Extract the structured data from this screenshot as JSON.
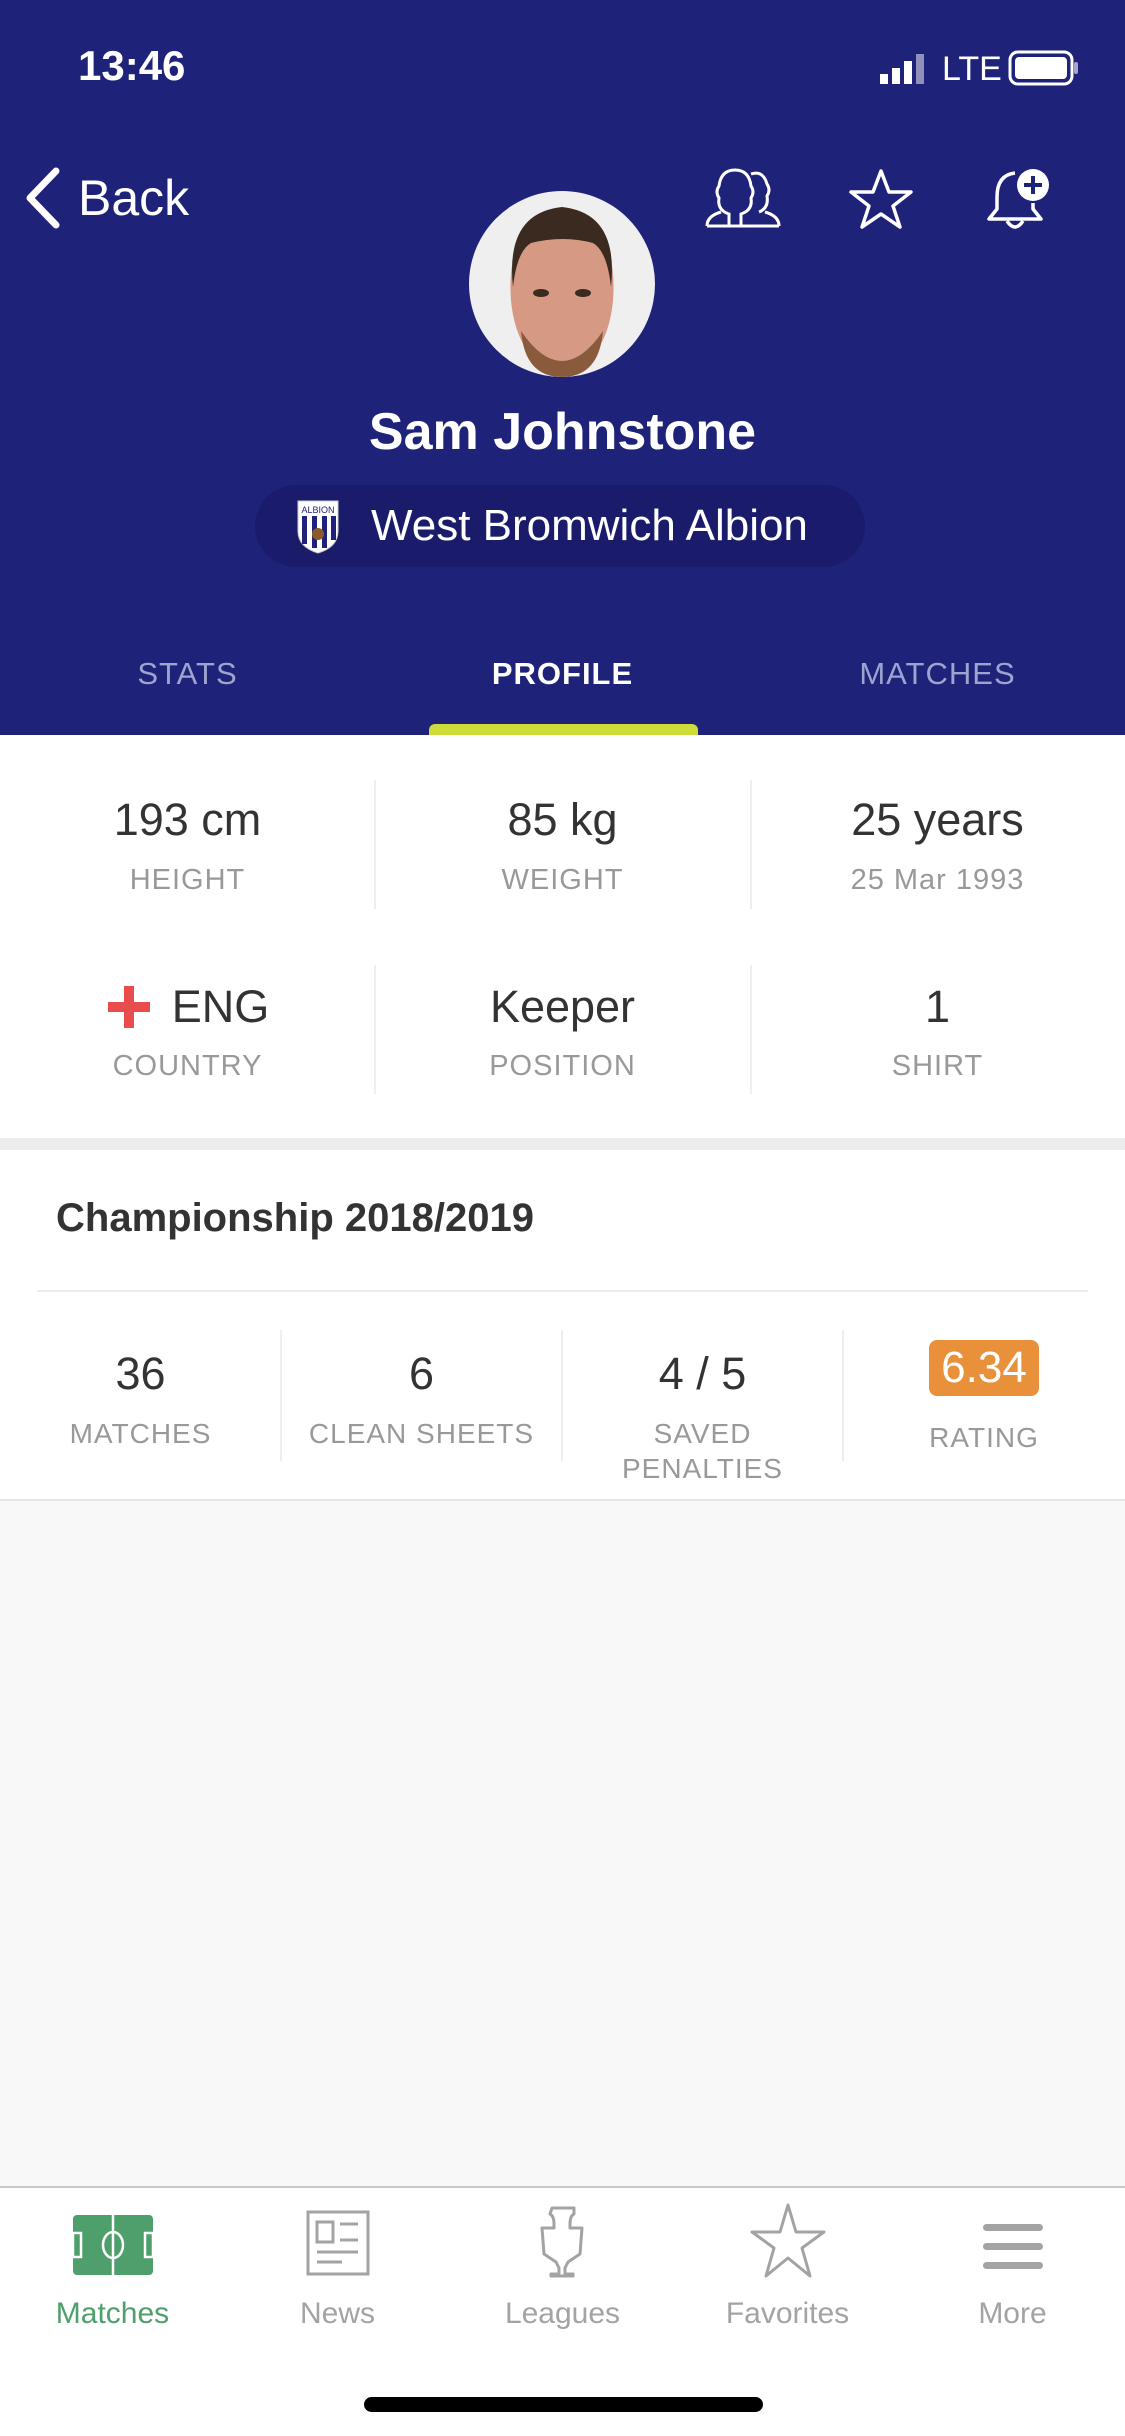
{
  "status_bar": {
    "time": "13:46",
    "network": "LTE"
  },
  "header": {
    "back_label": "Back",
    "player_name": "Sam Johnstone",
    "club_name": "West Bromwich Albion",
    "icons": [
      "compare-players-icon",
      "star-icon",
      "bell-plus-icon"
    ]
  },
  "tabs": [
    {
      "label": "STATS"
    },
    {
      "label": "PROFILE",
      "active": true
    },
    {
      "label": "MATCHES"
    }
  ],
  "profile": {
    "height": {
      "value": "193 cm",
      "label": "HEIGHT"
    },
    "weight": {
      "value": "85 kg",
      "label": "WEIGHT"
    },
    "age": {
      "value": "25 years",
      "label": "25 Mar 1993"
    },
    "country": {
      "value": "ENG",
      "label": "COUNTRY"
    },
    "position": {
      "value": "Keeper",
      "label": "POSITION"
    },
    "shirt": {
      "value": "1",
      "label": "SHIRT"
    }
  },
  "season": {
    "title": "Championship 2018/2019",
    "stats": [
      {
        "value": "36",
        "label": "MATCHES"
      },
      {
        "value": "6",
        "label": "CLEAN SHEETS"
      },
      {
        "value": "4 / 5",
        "label": "SAVED PENALTIES"
      },
      {
        "value": "6.34",
        "label": "RATING"
      }
    ]
  },
  "bottom_nav": [
    {
      "label": "Matches",
      "active": true
    },
    {
      "label": "News"
    },
    {
      "label": "Leagues"
    },
    {
      "label": "Favorites"
    },
    {
      "label": "More"
    }
  ],
  "colors": {
    "header": "#1e2279",
    "accent": "#cddc39",
    "rating": "#e8913a",
    "active_nav": "#4e9f6c"
  }
}
